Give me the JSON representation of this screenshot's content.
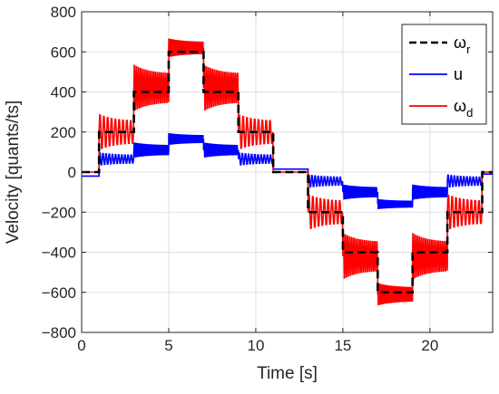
{
  "chart_data": {
    "type": "line",
    "xlabel": "Time [s]",
    "ylabel": "Velocity [quants/ts]",
    "xlim": [
      0,
      23.6
    ],
    "ylim": [
      -800,
      800
    ],
    "xticks": [
      0,
      5,
      10,
      15,
      20
    ],
    "yticks": [
      -800,
      -600,
      -400,
      -200,
      0,
      200,
      400,
      600,
      800
    ],
    "grid": true,
    "legend_position": "top-right",
    "series": [
      {
        "name": "ω_r",
        "name_main": "ω",
        "name_sub": "r",
        "style": "dashed",
        "color": "#000000",
        "x": [
          0,
          1,
          1,
          3,
          3,
          5,
          5,
          7,
          7,
          9,
          9,
          11,
          11,
          13,
          13,
          15,
          15,
          17,
          17,
          19,
          19,
          21,
          21,
          23,
          23,
          23.6
        ],
        "y": [
          0,
          0,
          200,
          200,
          400,
          400,
          600,
          600,
          400,
          400,
          200,
          200,
          0,
          0,
          -200,
          -200,
          -400,
          -400,
          -600,
          -600,
          -400,
          -400,
          -200,
          -200,
          0,
          0
        ]
      },
      {
        "name": "u",
        "name_main": "u",
        "name_sub": "",
        "style": "solid",
        "color": "#0000ff",
        "segments": [
          {
            "t0": 0,
            "t1": 1,
            "y": -20,
            "amp": 0,
            "period": 0.18
          },
          {
            "t0": 1,
            "t1": 3,
            "y": 65,
            "amp": 35,
            "period": 0.18
          },
          {
            "t0": 3,
            "t1": 5,
            "y": 110,
            "amp": 40,
            "period": 0.1
          },
          {
            "t0": 5,
            "t1": 7,
            "y": 165,
            "amp": 30,
            "period": 0.05
          },
          {
            "t0": 7,
            "t1": 9,
            "y": 110,
            "amp": 40,
            "period": 0.1
          },
          {
            "t0": 9,
            "t1": 11,
            "y": 65,
            "amp": 35,
            "period": 0.18
          },
          {
            "t0": 11,
            "t1": 13,
            "y": 15,
            "amp": 0,
            "period": 0.18
          },
          {
            "t0": 13,
            "t1": 15,
            "y": -45,
            "amp": 35,
            "period": 0.18
          },
          {
            "t0": 15,
            "t1": 17,
            "y": -100,
            "amp": 40,
            "period": 0.1
          },
          {
            "t0": 17,
            "t1": 19,
            "y": -160,
            "amp": 25,
            "period": 0.05
          },
          {
            "t0": 19,
            "t1": 21,
            "y": -100,
            "amp": 40,
            "period": 0.1
          },
          {
            "t0": 21,
            "t1": 23,
            "y": -45,
            "amp": 35,
            "period": 0.18
          },
          {
            "t0": 23,
            "t1": 23.6,
            "y": -10,
            "amp": 0,
            "period": 0.18
          }
        ]
      },
      {
        "name": "ω_d",
        "name_main": "ω",
        "name_sub": "d",
        "style": "solid",
        "color": "#ff0000",
        "segments": [
          {
            "t0": 0,
            "t1": 1,
            "y": 0,
            "amp": 0,
            "period": 0.18
          },
          {
            "t0": 1,
            "t1": 3,
            "y": 200,
            "amp": 100,
            "period": 0.22
          },
          {
            "t0": 3,
            "t1": 5,
            "y": 420,
            "amp": 130,
            "period": 0.12
          },
          {
            "t0": 5,
            "t1": 7,
            "y": 620,
            "amp": 50,
            "period": 0.05
          },
          {
            "t0": 7,
            "t1": 9,
            "y": 420,
            "amp": 130,
            "period": 0.12
          },
          {
            "t0": 9,
            "t1": 11,
            "y": 200,
            "amp": 100,
            "period": 0.22
          },
          {
            "t0": 11,
            "t1": 13,
            "y": 0,
            "amp": 0,
            "period": 0.18
          },
          {
            "t0": 13,
            "t1": 15,
            "y": -200,
            "amp": 100,
            "period": 0.22
          },
          {
            "t0": 15,
            "t1": 17,
            "y": -420,
            "amp": 130,
            "period": 0.12
          },
          {
            "t0": 17,
            "t1": 19,
            "y": -610,
            "amp": 60,
            "period": 0.05
          },
          {
            "t0": 19,
            "t1": 21,
            "y": -420,
            "amp": 130,
            "period": 0.12
          },
          {
            "t0": 21,
            "t1": 23,
            "y": -200,
            "amp": 100,
            "period": 0.22
          },
          {
            "t0": 23,
            "t1": 23.6,
            "y": 0,
            "amp": 0,
            "period": 0.18
          }
        ]
      }
    ]
  }
}
